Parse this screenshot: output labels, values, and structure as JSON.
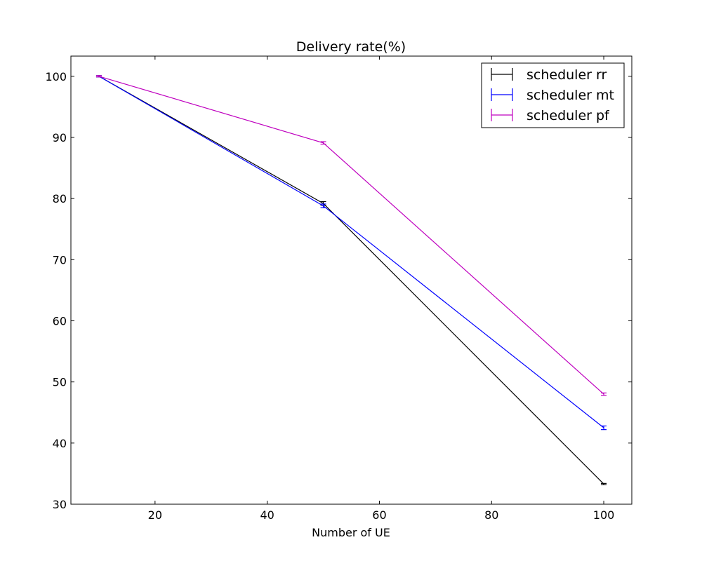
{
  "chart_data": {
    "type": "line",
    "title": "Delivery rate(%)",
    "xlabel": "Number of UE",
    "ylabel": "",
    "xlim": [
      5,
      105
    ],
    "ylim": [
      30,
      103.3
    ],
    "x_ticks": [
      20,
      40,
      60,
      80,
      100
    ],
    "y_ticks": [
      30,
      40,
      50,
      60,
      70,
      80,
      90,
      100
    ],
    "grid": false,
    "legend_position": "top-right",
    "error_bars": true,
    "series": [
      {
        "name": "scheduler rr",
        "color": "#000000",
        "x": [
          10,
          50,
          100
        ],
        "y": [
          100,
          79.2,
          33.3
        ],
        "err": [
          0.1,
          0.3,
          0.1
        ]
      },
      {
        "name": "scheduler mt",
        "color": "#0000ff",
        "x": [
          10,
          50,
          100
        ],
        "y": [
          100,
          78.8,
          42.5
        ],
        "err": [
          0.1,
          0.3,
          0.3
        ]
      },
      {
        "name": "scheduler pf",
        "color": "#bf00bf",
        "x": [
          10,
          50,
          100
        ],
        "y": [
          100,
          89.1,
          48.0
        ],
        "err": [
          0.1,
          0.2,
          0.2
        ]
      }
    ]
  }
}
